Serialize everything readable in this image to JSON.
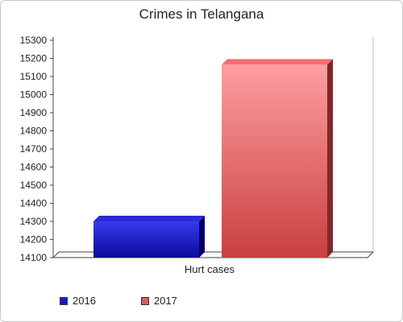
{
  "chart_data": {
    "type": "bar",
    "title": "Crimes in Telangana",
    "categories": [
      "Hurt cases"
    ],
    "series": [
      {
        "name": "2016",
        "values": [
          14300
        ],
        "color": "#1a1acc"
      },
      {
        "name": "2017",
        "values": [
          15165
        ],
        "color": "#e06060"
      }
    ],
    "ylim": [
      14100,
      15300
    ],
    "yticks": [
      14100,
      14200,
      14300,
      14400,
      14500,
      14600,
      14700,
      14800,
      14900,
      15000,
      15100,
      15200,
      15300
    ],
    "grid": false,
    "legend": "bottom-left"
  }
}
